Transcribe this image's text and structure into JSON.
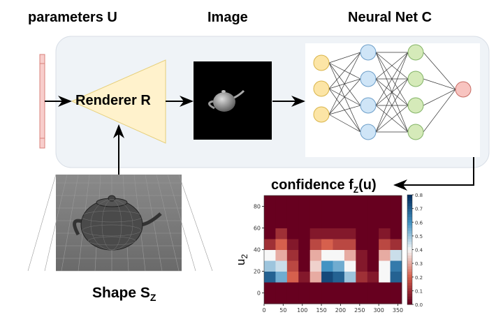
{
  "labels": {
    "parameters": "parameters U",
    "image": "Image",
    "neural_net": "Neural Net C",
    "renderer": "Renderer R",
    "shape": "Shape S",
    "shape_sub": "Z",
    "confidence": "confidence f",
    "confidence_sub": "Z",
    "confidence_arg": "(u)"
  },
  "colors": {
    "panel": "#eff3f7",
    "params_bar": "#f8cecc",
    "renderer": "#fff2cc",
    "input_nodes": "#fce5a6",
    "hidden1": "#cfe5f7",
    "hidden2": "#d5eab9",
    "output_node": "#f8c4c0"
  },
  "chart_data": {
    "type": "heatmap",
    "ylabel": "u2",
    "xlabel": "",
    "xlim": [
      0,
      360
    ],
    "ylim": [
      -10,
      90
    ],
    "xticks": [
      "0",
      "50",
      "100",
      "150",
      "200",
      "250",
      "300",
      "350"
    ],
    "yticks": [
      "0",
      "20",
      "40",
      "60",
      "80"
    ],
    "colorbar": {
      "colormap": "RdBu",
      "range": [
        0,
        0.8
      ],
      "ticks": [
        "0.0",
        "0.1",
        "0.2",
        "0.3",
        "0.4",
        "0.5",
        "0.6",
        "0.7",
        "0.8"
      ]
    },
    "x_bin_starts": [
      0,
      30,
      60,
      90,
      120,
      150,
      180,
      210,
      240,
      270,
      300,
      330
    ],
    "y_bin_starts": [
      -10,
      0,
      10,
      20,
      30,
      40,
      50,
      60,
      70,
      80
    ],
    "values": [
      [
        0,
        0,
        0,
        0,
        0,
        0,
        0,
        0,
        0,
        0,
        0,
        0
      ],
      [
        0,
        0,
        0,
        0,
        0,
        0,
        0,
        0,
        0,
        0,
        0,
        0
      ],
      [
        0.7,
        0.55,
        0.2,
        0.05,
        0.3,
        0.75,
        0.7,
        0.5,
        0.1,
        0.05,
        0.4,
        0.7
      ],
      [
        0.5,
        0.45,
        0.15,
        0,
        0.35,
        0.6,
        0.55,
        0.4,
        0.05,
        0,
        0.4,
        0.65
      ],
      [
        0.4,
        0.3,
        0.1,
        0,
        0.3,
        0.4,
        0.4,
        0.3,
        0.05,
        0,
        0.3,
        0.45
      ],
      [
        0.1,
        0.2,
        0.05,
        0,
        0.15,
        0.2,
        0.15,
        0.15,
        0,
        0,
        0.15,
        0.1
      ],
      [
        0,
        0.1,
        0,
        0,
        0.05,
        0.05,
        0.05,
        0.05,
        0,
        0,
        0.05,
        0
      ],
      [
        0,
        0,
        0,
        0,
        0,
        0,
        0,
        0,
        0,
        0,
        0,
        0
      ],
      [
        0,
        0,
        0,
        0,
        0,
        0,
        0,
        0,
        0,
        0,
        0,
        0
      ],
      [
        0,
        0,
        0,
        0,
        0,
        0,
        0,
        0,
        0,
        0,
        0,
        0
      ]
    ]
  }
}
